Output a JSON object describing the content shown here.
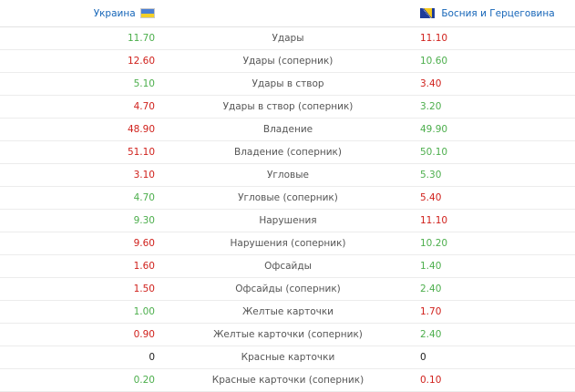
{
  "header": {
    "home_team": "Украина",
    "away_team": "Босния и Герцеговина"
  },
  "flags": {
    "home": "ukraine-flag",
    "away": "bosnia-herzegovina-flag"
  },
  "colors": {
    "higher": "#4cae4c",
    "lower": "#d0211c",
    "equal": "#222222",
    "link": "#1565b8"
  },
  "rows": [
    {
      "label": "Удары",
      "home": "11.70",
      "away": "11.10",
      "home_color": "green",
      "away_color": "red"
    },
    {
      "label": "Удары (соперник)",
      "home": "12.60",
      "away": "10.60",
      "home_color": "red",
      "away_color": "green"
    },
    {
      "label": "Удары в створ",
      "home": "5.10",
      "away": "3.40",
      "home_color": "green",
      "away_color": "red"
    },
    {
      "label": "Удары в створ (соперник)",
      "home": "4.70",
      "away": "3.20",
      "home_color": "red",
      "away_color": "green"
    },
    {
      "label": "Владение",
      "home": "48.90",
      "away": "49.90",
      "home_color": "red",
      "away_color": "green"
    },
    {
      "label": "Владение (соперник)",
      "home": "51.10",
      "away": "50.10",
      "home_color": "red",
      "away_color": "green"
    },
    {
      "label": "Угловые",
      "home": "3.10",
      "away": "5.30",
      "home_color": "red",
      "away_color": "green"
    },
    {
      "label": "Угловые (соперник)",
      "home": "4.70",
      "away": "5.40",
      "home_color": "green",
      "away_color": "red"
    },
    {
      "label": "Нарушения",
      "home": "9.30",
      "away": "11.10",
      "home_color": "green",
      "away_color": "red"
    },
    {
      "label": "Нарушения (соперник)",
      "home": "9.60",
      "away": "10.20",
      "home_color": "red",
      "away_color": "green"
    },
    {
      "label": "Офсайды",
      "home": "1.60",
      "away": "1.40",
      "home_color": "red",
      "away_color": "green"
    },
    {
      "label": "Офсайды (соперник)",
      "home": "1.50",
      "away": "2.40",
      "home_color": "red",
      "away_color": "green"
    },
    {
      "label": "Желтые карточки",
      "home": "1.00",
      "away": "1.70",
      "home_color": "green",
      "away_color": "red"
    },
    {
      "label": "Желтые карточки (соперник)",
      "home": "0.90",
      "away": "2.40",
      "home_color": "red",
      "away_color": "green"
    },
    {
      "label": "Красные карточки",
      "home": "0",
      "away": "0",
      "home_color": "black",
      "away_color": "black"
    },
    {
      "label": "Красные карточки (соперник)",
      "home": "0.20",
      "away": "0.10",
      "home_color": "green",
      "away_color": "red"
    }
  ]
}
